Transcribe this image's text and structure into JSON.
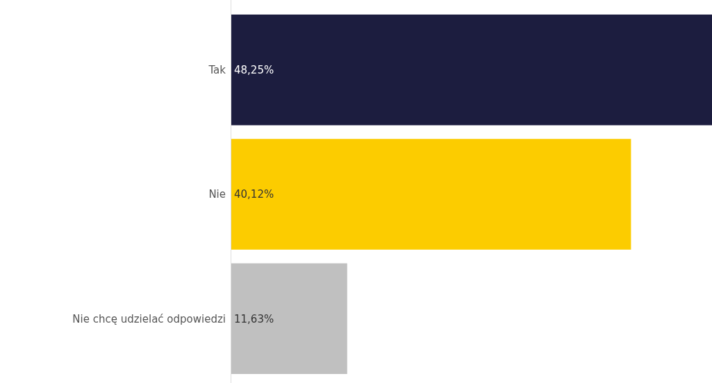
{
  "chart_data": {
    "type": "bar",
    "orientation": "horizontal",
    "categories": [
      "Tak",
      "Nie",
      "Nie chcę udzielać odpowiedzi"
    ],
    "values": [
      48.25,
      40.12,
      11.63
    ],
    "colors": [
      "#1c1d3f",
      "#fccc00",
      "#c0c0c0"
    ],
    "value_labels": [
      "48,25%",
      "40,12%",
      "11,63%"
    ],
    "xlim": [
      0,
      48.25
    ],
    "tick_labels": "y"
  }
}
